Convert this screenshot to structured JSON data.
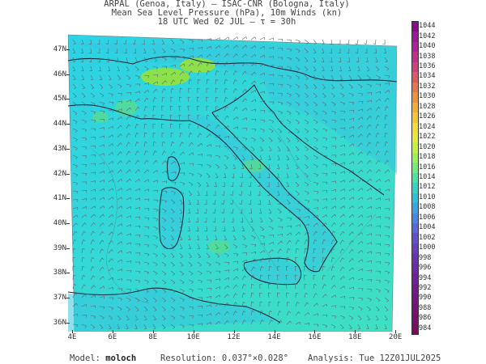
{
  "header": {
    "line1": "ARPAL (Genoa, Italy)  —  ISAC-CNR (Bologna, Italy)",
    "line2": "Mean Sea Level Pressure (hPa), 10m Winds (kn)",
    "line3": "18 UTC Wed 02 JUL   —   τ = 30h"
  },
  "lat_labels": [
    "47N",
    "46N",
    "45N",
    "44N",
    "43N",
    "42N",
    "41N",
    "40N",
    "39N",
    "38N",
    "37N",
    "36N"
  ],
  "lon_labels": [
    "4E",
    "6E",
    "8E",
    "10E",
    "12E",
    "14E",
    "16E",
    "18E",
    "20E"
  ],
  "colorbar": {
    "labels": [
      "1044",
      "1042",
      "1040",
      "1038",
      "1036",
      "1034",
      "1032",
      "1030",
      "1028",
      "1026",
      "1024",
      "1022",
      "1020",
      "1018",
      "1016",
      "1014",
      "1012",
      "1010",
      "1008",
      "1006",
      "1004",
      "1002",
      "1000",
      "998",
      "996",
      "994",
      "992",
      "990",
      "988",
      "986",
      "984"
    ],
    "colors": [
      "#8b0a8b",
      "#9b1a9a",
      "#b02098",
      "#c0308a",
      "#d0407a",
      "#dc5a64",
      "#e6764c",
      "#ee9240",
      "#f2ae38",
      "#f4c636",
      "#f2dc36",
      "#e4ea38",
      "#c4f040",
      "#9cf05a",
      "#70ec7c",
      "#4ee2a0",
      "#36d4c4",
      "#30c0dc",
      "#3aa4e4",
      "#4a86e6",
      "#5a68dc",
      "#6050cc",
      "#6840bc",
      "#6a34b0",
      "#6c2aa4",
      "#6e2298",
      "#701c8c",
      "#721880",
      "#741474",
      "#761068",
      "#780c5c"
    ]
  },
  "map_colors": {
    "sea_low": "#2cd2e6",
    "sea_high": "#3fe0c0",
    "land": "#36c6e0",
    "alps_hi": "#8ce04a",
    "alps_mid": "#5cdc86",
    "coast": "#0a2a3a",
    "barb": "#5a6a78"
  },
  "footer": {
    "model_label": "Model:",
    "model_value": "moloch",
    "resolution_label": "Resolution:",
    "resolution_value": "0.037°×0.028°",
    "analysis_label": "Analysis:",
    "analysis_value": "Tue 12Z01JUL2025"
  }
}
